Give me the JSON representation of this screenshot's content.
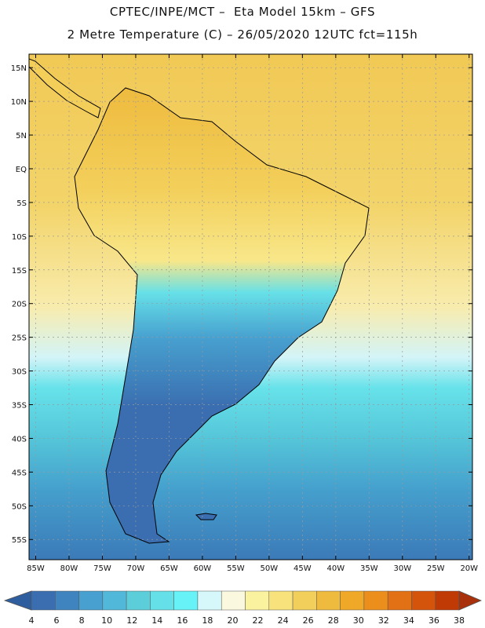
{
  "header": {
    "title_line1": "CPTEC/INPE/MCT –  Eta Model 15km – GFS",
    "title_line2": "2 Metre Temperature (C) – 26/05/2020 12UTC fct=115h"
  },
  "axes": {
    "lat_labels": [
      "15N",
      "10N",
      "5N",
      "EQ",
      "5S",
      "10S",
      "15S",
      "20S",
      "25S",
      "30S",
      "35S",
      "40S",
      "45S",
      "50S",
      "55S"
    ],
    "lat_values": [
      15,
      10,
      5,
      0,
      -5,
      -10,
      -15,
      -20,
      -25,
      -30,
      -35,
      -40,
      -45,
      -50,
      -55
    ],
    "lon_labels": [
      "85W",
      "80W",
      "75W",
      "70W",
      "65W",
      "60W",
      "55W",
      "50W",
      "45W",
      "40W",
      "35W",
      "30W",
      "25W",
      "20W"
    ],
    "lon_values": [
      -85,
      -80,
      -75,
      -70,
      -65,
      -60,
      -55,
      -50,
      -45,
      -40,
      -35,
      -30,
      -25,
      -20
    ],
    "lat_range": [
      -58,
      17
    ],
    "lon_range": [
      -86,
      -19.5
    ]
  },
  "colorbar": {
    "labels": [
      "4",
      "6",
      "8",
      "10",
      "12",
      "14",
      "16",
      "18",
      "20",
      "22",
      "24",
      "26",
      "28",
      "30",
      "32",
      "34",
      "36",
      "38"
    ],
    "colors": [
      "#3a6eb0",
      "#3f84bf",
      "#47a0cf",
      "#52b8da",
      "#5cced9",
      "#66e0e8",
      "#66f2f7",
      "#d6f8fb",
      "#fbf8e0",
      "#fbf2a0",
      "#f7e27c",
      "#f2cf5a",
      "#eebb3e",
      "#f0a828",
      "#ec8e1c",
      "#e27014",
      "#d4540c",
      "#c03a06"
    ],
    "under_color": "#2f5e9e",
    "over_color": "#a8300a"
  },
  "colors": {
    "border": "#000000",
    "grid": "#999999"
  }
}
